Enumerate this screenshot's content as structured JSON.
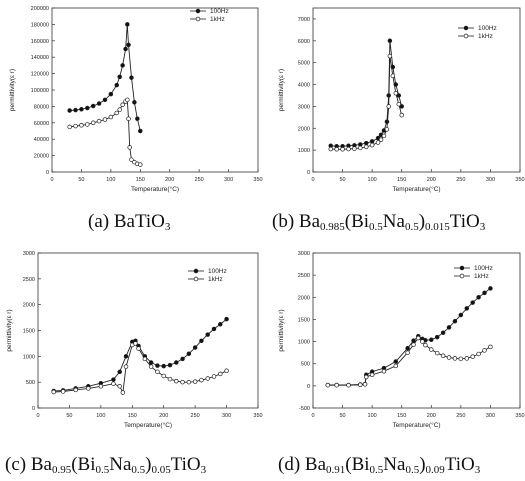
{
  "chart_data": [
    {
      "type": "line",
      "caption": "(a) BaTiO3",
      "xlabel": "Temperature(°C)",
      "ylabel": "permittivity(ε r)",
      "xlim": [
        0,
        350
      ],
      "ylim": [
        0,
        200000
      ],
      "xticks": [
        0,
        50,
        100,
        150,
        200,
        250,
        300,
        350
      ],
      "yticks": [
        0,
        20000,
        40000,
        60000,
        80000,
        100000,
        120000,
        140000,
        160000,
        180000,
        200000
      ],
      "legend_position": "top-right",
      "grid": false,
      "series": [
        {
          "name": "100Hz",
          "marker": "filled",
          "x": [
            30,
            40,
            50,
            60,
            70,
            80,
            90,
            100,
            110,
            115,
            120,
            125,
            128,
            130,
            135,
            140,
            145,
            150
          ],
          "y": [
            75000,
            75500,
            76500,
            78000,
            80500,
            83500,
            88000,
            95000,
            106000,
            116000,
            130000,
            150000,
            180000,
            155000,
            115000,
            85000,
            65000,
            50000
          ]
        },
        {
          "name": "1kHz",
          "marker": "open",
          "x": [
            30,
            40,
            50,
            60,
            70,
            80,
            90,
            100,
            110,
            115,
            120,
            125,
            128,
            130,
            132,
            135,
            140,
            145,
            150
          ],
          "y": [
            55000,
            56000,
            57000,
            58000,
            60000,
            62000,
            64000,
            67000,
            72000,
            76000,
            82000,
            86000,
            88000,
            65000,
            30000,
            15000,
            12000,
            10000,
            9000
          ]
        }
      ]
    },
    {
      "type": "line",
      "caption": "(b) Ba0.985(Bi0.5Na0.5)0.015TiO3",
      "xlabel": "Temperature(°C)",
      "ylabel": "permittivity(ε r)",
      "xlim": [
        0,
        350
      ],
      "ylim": [
        0,
        7500
      ],
      "xticks": [
        0,
        50,
        100,
        150,
        200,
        250,
        300,
        350
      ],
      "yticks": [
        0,
        1000,
        2000,
        3000,
        4000,
        5000,
        6000,
        7000
      ],
      "legend_position": "top-right",
      "grid": false,
      "series": [
        {
          "name": "100Hz",
          "marker": "filled",
          "x": [
            30,
            40,
            50,
            60,
            70,
            80,
            90,
            100,
            110,
            115,
            120,
            125,
            128,
            130,
            135,
            140,
            145,
            150
          ],
          "y": [
            1200,
            1180,
            1180,
            1200,
            1220,
            1260,
            1320,
            1400,
            1550,
            1700,
            1900,
            2300,
            3500,
            6000,
            4800,
            4000,
            3500,
            3000
          ]
        },
        {
          "name": "1kHz",
          "marker": "open",
          "x": [
            30,
            40,
            50,
            60,
            70,
            80,
            90,
            100,
            110,
            115,
            120,
            125,
            128,
            130,
            135,
            140,
            145,
            150
          ],
          "y": [
            1050,
            1040,
            1040,
            1050,
            1070,
            1100,
            1150,
            1230,
            1350,
            1480,
            1650,
            1950,
            3000,
            5300,
            4400,
            3600,
            3100,
            2600
          ]
        }
      ]
    },
    {
      "type": "line",
      "caption": "(c) Ba0.95(Bi0.5Na0.5)0.05TiO3",
      "xlabel": "Temperature(°C)",
      "ylabel": "permittivity(ε r)",
      "xlim": [
        0,
        350
      ],
      "ylim": [
        0,
        3000
      ],
      "xticks": [
        0,
        50,
        100,
        150,
        200,
        250,
        300,
        350
      ],
      "yticks": [
        0,
        500,
        1000,
        1500,
        2000,
        2500,
        3000
      ],
      "legend_position": "top-right",
      "grid": false,
      "series": [
        {
          "name": "100Hz",
          "marker": "filled",
          "x": [
            25,
            40,
            60,
            80,
            100,
            120,
            130,
            140,
            150,
            155,
            160,
            170,
            180,
            190,
            200,
            210,
            220,
            230,
            240,
            250,
            260,
            270,
            280,
            290,
            300
          ],
          "y": [
            330,
            340,
            380,
            420,
            480,
            550,
            700,
            1000,
            1280,
            1300,
            1200,
            1000,
            880,
            820,
            810,
            830,
            880,
            950,
            1050,
            1170,
            1300,
            1420,
            1530,
            1620,
            1720
          ]
        },
        {
          "name": "1kHz",
          "marker": "open",
          "x": [
            25,
            40,
            60,
            80,
            100,
            120,
            130,
            135,
            140,
            150,
            155,
            160,
            170,
            180,
            190,
            200,
            210,
            220,
            230,
            240,
            250,
            260,
            270,
            280,
            290,
            300
          ],
          "y": [
            310,
            320,
            350,
            380,
            420,
            470,
            420,
            300,
            800,
            1220,
            1250,
            1150,
            950,
            800,
            700,
            620,
            560,
            520,
            500,
            500,
            510,
            540,
            570,
            610,
            660,
            720
          ]
        }
      ]
    },
    {
      "type": "line",
      "caption": "(d) Ba0.91(Bi0.5Na0.5)0.09TiO3",
      "xlabel": "Temperature(°C)",
      "ylabel": "permittivity(ε r)",
      "xlim": [
        0,
        350
      ],
      "ylim": [
        -500,
        3000
      ],
      "xticks": [
        0,
        50,
        100,
        150,
        200,
        250,
        300,
        350
      ],
      "yticks": [
        -500,
        0,
        500,
        1000,
        1500,
        2000,
        2500,
        3000
      ],
      "legend_position": "top-right",
      "grid": false,
      "series": [
        {
          "name": "100Hz",
          "marker": "filled",
          "x": [
            25,
            40,
            60,
            80,
            88,
            90,
            100,
            120,
            140,
            160,
            170,
            178,
            185,
            190,
            200,
            210,
            220,
            230,
            240,
            250,
            260,
            270,
            280,
            290,
            300
          ],
          "y": [
            20,
            20,
            20,
            30,
            40,
            250,
            320,
            400,
            550,
            850,
            1020,
            1120,
            1060,
            1030,
            1040,
            1100,
            1200,
            1320,
            1460,
            1600,
            1750,
            1880,
            2000,
            2100,
            2200
          ]
        },
        {
          "name": "1kHz",
          "marker": "open",
          "x": [
            25,
            40,
            60,
            80,
            88,
            90,
            100,
            120,
            140,
            160,
            170,
            178,
            185,
            190,
            200,
            210,
            220,
            230,
            240,
            250,
            260,
            270,
            280,
            290,
            300
          ],
          "y": [
            15,
            15,
            15,
            25,
            35,
            200,
            250,
            330,
            450,
            750,
            930,
            1080,
            1000,
            920,
            820,
            740,
            680,
            640,
            620,
            610,
            620,
            660,
            720,
            800,
            880
          ]
        }
      ]
    }
  ]
}
